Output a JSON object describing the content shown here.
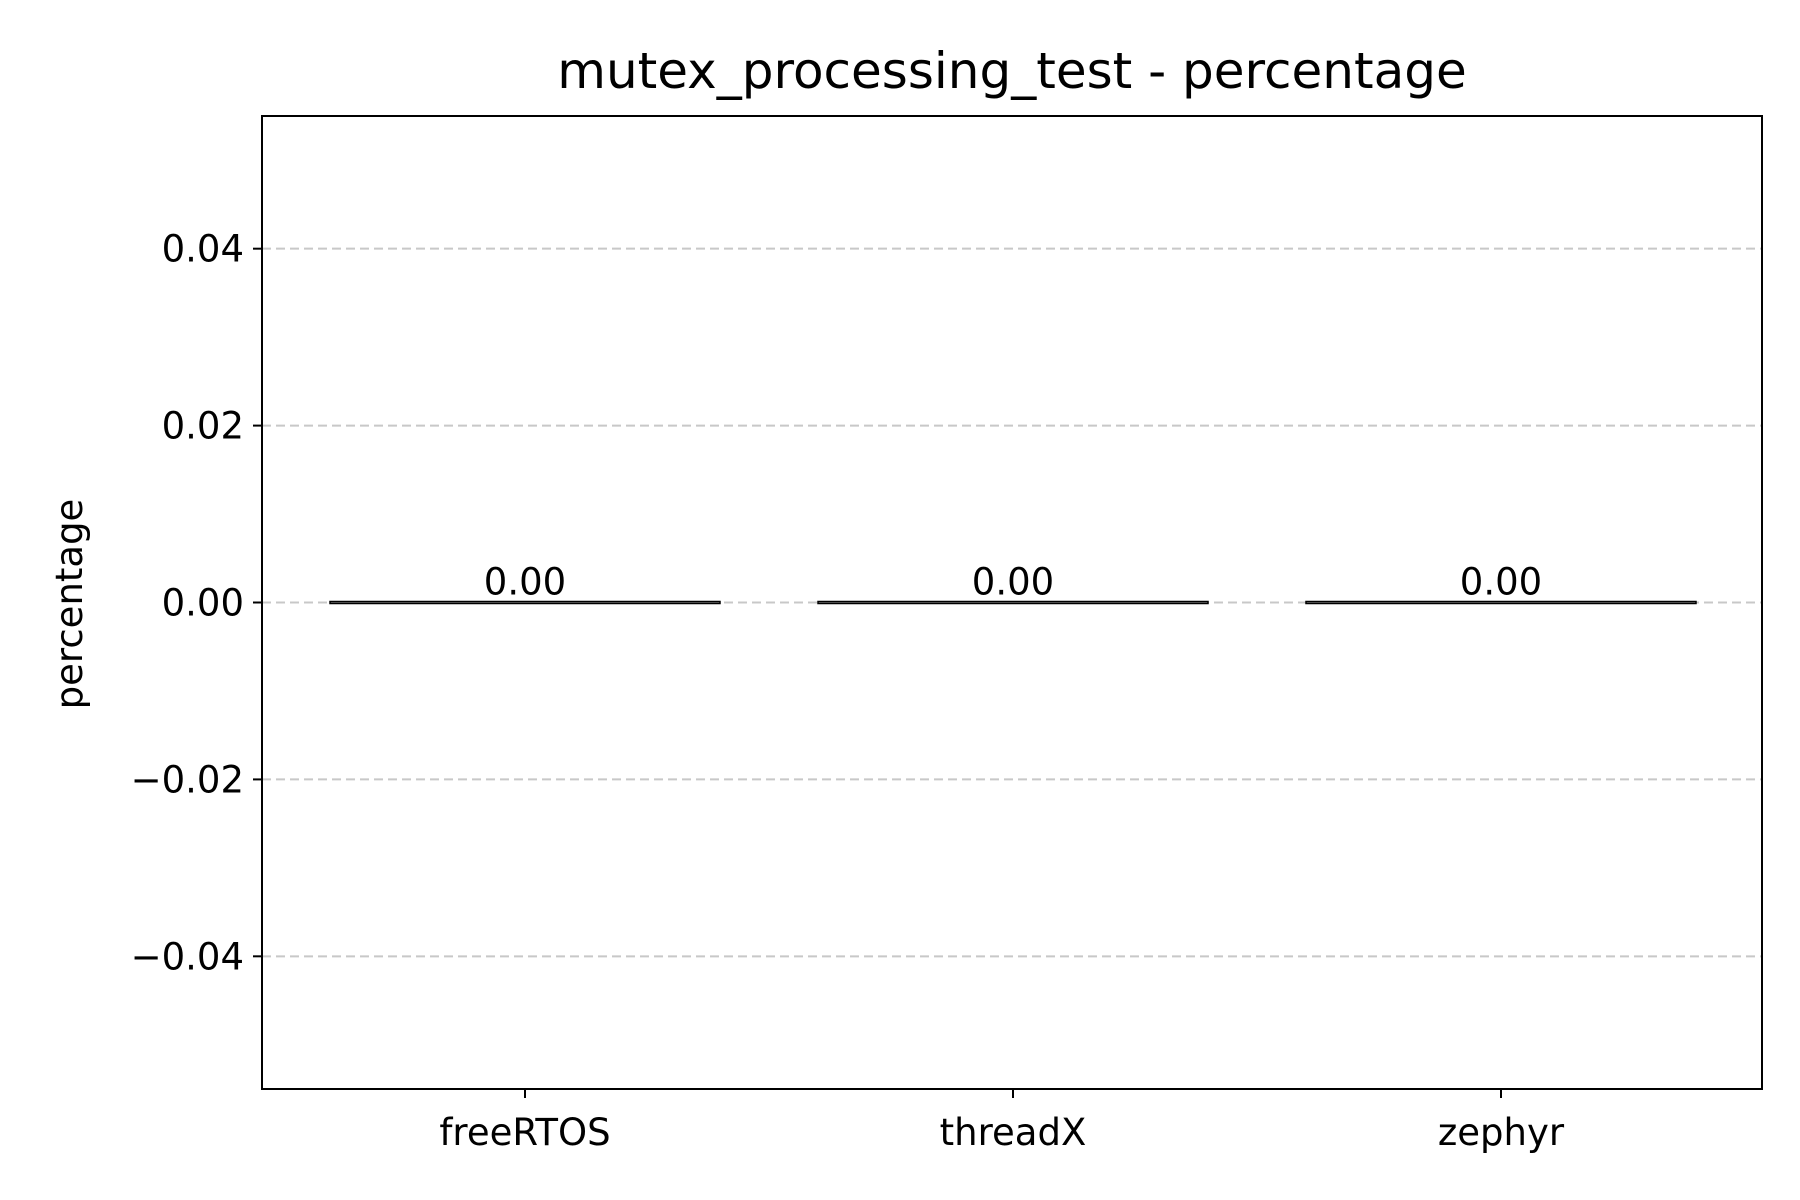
{
  "chart_data": {
    "type": "bar",
    "title": "mutex_processing_test - percentage",
    "xlabel": "",
    "ylabel": "percentage",
    "categories": [
      "freeRTOS",
      "threadX",
      "zephyr"
    ],
    "values": [
      0.0,
      0.0,
      0.0
    ],
    "data_labels": [
      "0.00",
      "0.00",
      "0.00"
    ],
    "ylim": [
      -0.055,
      0.055
    ],
    "yticks": [
      -0.04,
      -0.02,
      0.0,
      0.02,
      0.04
    ],
    "ytick_labels": [
      "−0.04",
      "−0.02",
      "0.00",
      "0.02",
      "0.04"
    ],
    "grid": "y dashed",
    "legend": "none",
    "colors": {
      "bar_edge": "#000000",
      "grid": "#c8c8c8",
      "axes": "#000000"
    }
  }
}
